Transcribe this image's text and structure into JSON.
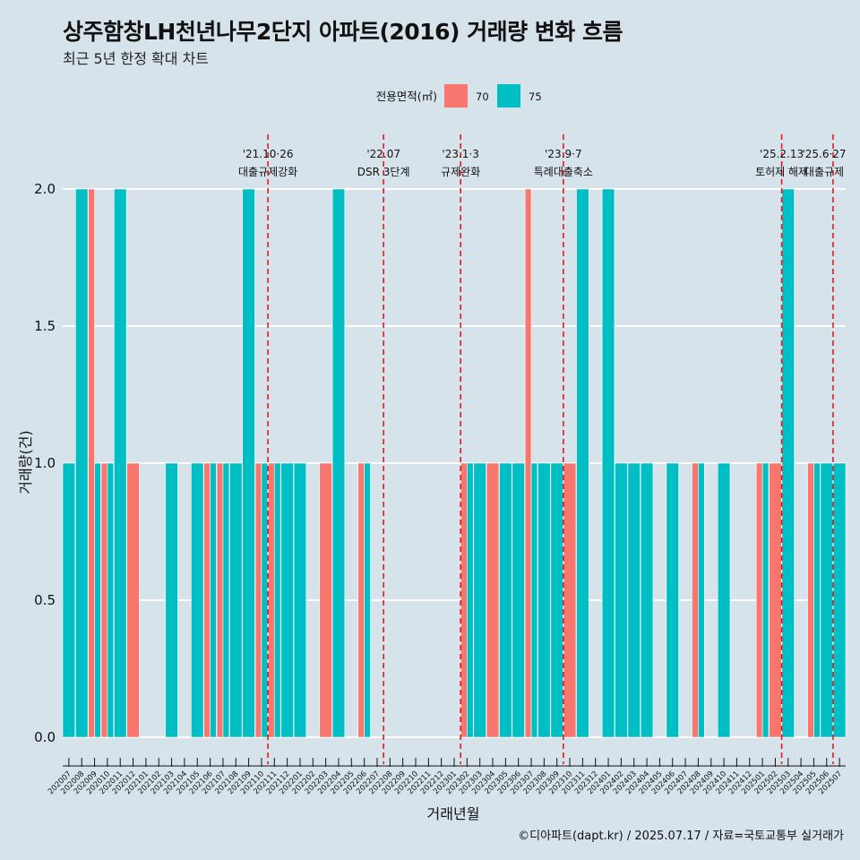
{
  "title": "상주함창LH천년나무2단지 아파트(2016) 거래량 변화 흐름",
  "subtitle": "최근 5년 한정 확대 차트",
  "caption": "©디아파트(dapt.kr) / 2025.07.17 / 자료=국토교통부 실거래가",
  "colors": {
    "s70": "#f8766d",
    "s75": "#00bfc4",
    "vline": "#e31a1c",
    "background": "#d6e3ea",
    "grid": "#ffffff"
  },
  "chart_data": {
    "type": "bar",
    "xlabel": "거래년월",
    "ylabel": "거래량(건)",
    "ylim": [
      0,
      2
    ],
    "yticks": [
      "0.0",
      "0.5",
      "1.0",
      "1.5",
      "2.0"
    ],
    "legend": {
      "title": "전용면적(㎡)",
      "position": "top"
    },
    "categories": [
      "202007",
      "202008",
      "202009",
      "202010",
      "202011",
      "202012",
      "202101",
      "202102",
      "202103",
      "202104",
      "202105",
      "202106",
      "202107",
      "202108",
      "202109",
      "202110",
      "202111",
      "202112",
      "202201",
      "202202",
      "202203",
      "202204",
      "202205",
      "202206",
      "202207",
      "202208",
      "202209",
      "202210",
      "202211",
      "202212",
      "202301",
      "202302",
      "202303",
      "202304",
      "202305",
      "202306",
      "202307",
      "202308",
      "202309",
      "202310",
      "202311",
      "202312",
      "202401",
      "202402",
      "202403",
      "202404",
      "202405",
      "202406",
      "202407",
      "202408",
      "202409",
      "202410",
      "202411",
      "202412",
      "202501",
      "202502",
      "202503",
      "202504",
      "202505",
      "202506",
      "202507"
    ],
    "series": [
      {
        "name": "70",
        "values": [
          0,
          0,
          2,
          1,
          0,
          1,
          0,
          0,
          0,
          0,
          0,
          1,
          1,
          0,
          0,
          1,
          1,
          0,
          0,
          0,
          1,
          0,
          0,
          1,
          0,
          0,
          0,
          0,
          0,
          0,
          0,
          1,
          0,
          1,
          0,
          0,
          2,
          0,
          0,
          1,
          0,
          0,
          0,
          0,
          0,
          0,
          0,
          0,
          0,
          1,
          0,
          0,
          0,
          0,
          1,
          1,
          0,
          0,
          1,
          0,
          0
        ]
      },
      {
        "name": "75",
        "values": [
          1,
          2,
          1,
          1,
          2,
          0,
          0,
          0,
          1,
          0,
          1,
          1,
          1,
          1,
          2,
          1,
          1,
          1,
          1,
          0,
          0,
          2,
          0,
          1,
          0,
          0,
          0,
          0,
          0,
          0,
          0,
          1,
          1,
          0,
          1,
          1,
          1,
          1,
          1,
          0,
          2,
          0,
          2,
          1,
          1,
          1,
          0,
          1,
          0,
          1,
          0,
          1,
          0,
          0,
          1,
          0,
          2,
          0,
          1,
          1,
          1
        ]
      }
    ],
    "events": [
      {
        "after": "202110",
        "date": "'21.10·26",
        "label": "대출규제강화"
      },
      {
        "after": "202207",
        "date": "'22.07",
        "label": "DSR 3단계"
      },
      {
        "after": "202301",
        "date": "'23.1·3",
        "label": "규제완화"
      },
      {
        "after": "202309",
        "date": "'23.9·7",
        "label": "특례대출축소"
      },
      {
        "after": "202502",
        "date": "'25.2.13",
        "label": "토허제 해제"
      },
      {
        "after": "202506",
        "date": "'25.6·27",
        "label": "대출규제"
      }
    ]
  }
}
